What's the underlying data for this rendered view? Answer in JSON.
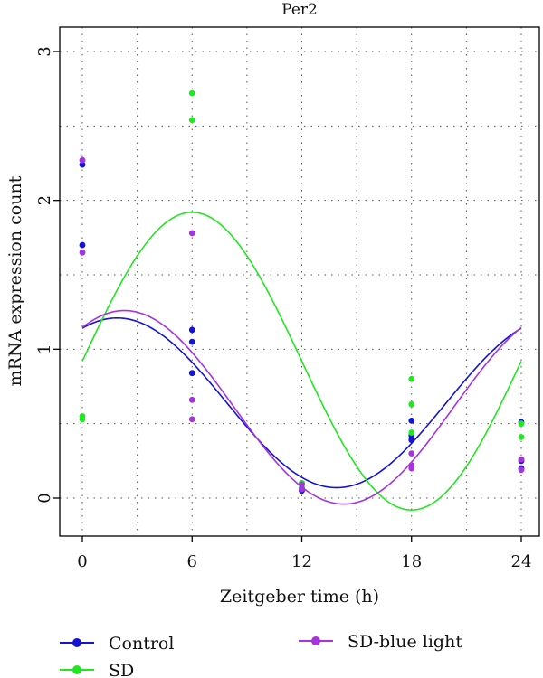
{
  "chart_data": {
    "type": "scatter",
    "title": "Per2",
    "xlabel": "Zeitgeber time (h)",
    "ylabel": "mRNA expression count",
    "x_ticks": [
      0,
      6,
      12,
      18,
      24
    ],
    "y_ticks": [
      0,
      1,
      2,
      3
    ],
    "xlim": [
      -0.6,
      24.6
    ],
    "ylim": [
      -0.25,
      3.1
    ],
    "grid": true,
    "legend_position": "bottom",
    "series": [
      {
        "name": "Control",
        "color": "#1414d2",
        "points": [
          [
            0,
            2.24
          ],
          [
            0,
            1.7
          ],
          [
            6,
            1.13
          ],
          [
            6,
            1.05
          ],
          [
            6,
            0.84
          ],
          [
            12,
            0.1
          ],
          [
            12,
            0.07
          ],
          [
            12,
            0.05
          ],
          [
            18,
            0.52
          ],
          [
            18,
            0.42
          ],
          [
            18,
            0.39
          ],
          [
            24,
            0.51
          ],
          [
            24,
            0.25
          ],
          [
            24,
            0.2
          ]
        ],
        "curve": {
          "mesor": 0.64,
          "amplitude": 0.57,
          "acrophase": 1.9,
          "period": 24
        }
      },
      {
        "name": "SD",
        "color": "#22e622",
        "points": [
          [
            0,
            0.55
          ],
          [
            0,
            0.53
          ],
          [
            6,
            2.72
          ],
          [
            6,
            2.54
          ],
          [
            12,
            0.1
          ],
          [
            12,
            0.07
          ],
          [
            18,
            0.8
          ],
          [
            18,
            0.63
          ],
          [
            18,
            0.44
          ],
          [
            24,
            0.5
          ],
          [
            24,
            0.41
          ]
        ],
        "curve": {
          "mesor": 0.92,
          "amplitude": 1.0,
          "acrophase": 6.0,
          "period": 24
        }
      },
      {
        "name": "SD-blue light",
        "color": "#a632e0",
        "points": [
          [
            0,
            2.27
          ],
          [
            0,
            1.65
          ],
          [
            6,
            1.78
          ],
          [
            6,
            0.66
          ],
          [
            6,
            0.53
          ],
          [
            12,
            0.09
          ],
          [
            12,
            0.06
          ],
          [
            18,
            0.3
          ],
          [
            18,
            0.22
          ],
          [
            18,
            0.2
          ],
          [
            24,
            0.26
          ],
          [
            24,
            0.19
          ]
        ],
        "curve": {
          "mesor": 0.61,
          "amplitude": 0.65,
          "acrophase": 2.3,
          "period": 24
        }
      }
    ]
  }
}
